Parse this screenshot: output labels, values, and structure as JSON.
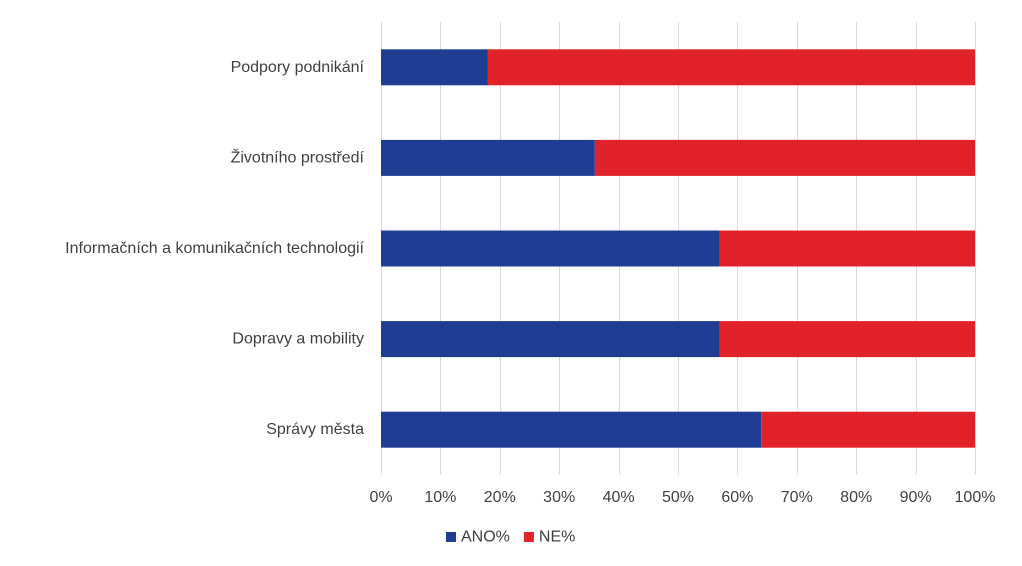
{
  "chart_data": {
    "type": "bar",
    "orientation": "horizontal",
    "stacked": "percent",
    "categories": [
      "Podpory podnikání",
      "Životního prostředí",
      "Informačních a komunikačních technologií",
      "Dopravy a mobility",
      "Správy města"
    ],
    "series": [
      {
        "name": "ANO%",
        "values": [
          18,
          36,
          57,
          57,
          64
        ],
        "color": "#1F3E93"
      },
      {
        "name": "NE%",
        "values": [
          82,
          64,
          43,
          43,
          36
        ],
        "color": "#E12228"
      }
    ],
    "xlim": [
      0,
      100
    ],
    "x_ticks": [
      0,
      10,
      20,
      30,
      40,
      50,
      60,
      70,
      80,
      90,
      100
    ],
    "x_tick_labels": [
      "0%",
      "10%",
      "20%",
      "30%",
      "40%",
      "50%",
      "60%",
      "70%",
      "80%",
      "90%",
      "100%"
    ],
    "grid": "vertical",
    "grid_color": "#D9D9D9",
    "legend": "bottom",
    "title": "",
    "xlabel": "",
    "ylabel": ""
  }
}
